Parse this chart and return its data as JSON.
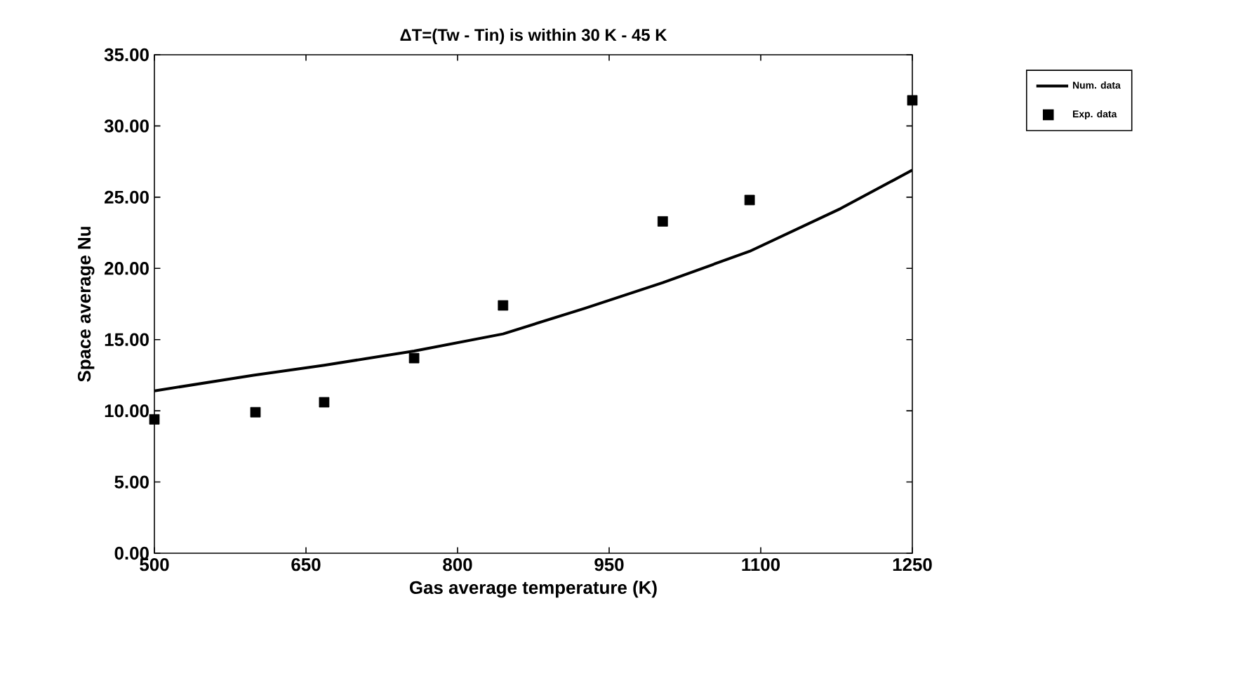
{
  "chart_data": {
    "type": "scatter",
    "title": "ΔT=(Tw - Tin) is within 30 K - 45 K",
    "xlabel": "Gas average temperature (K)",
    "ylabel": "Space average Nu",
    "xlim": [
      500,
      1250
    ],
    "xticks": [
      500,
      650,
      800,
      950,
      1100,
      1250
    ],
    "ylim": [
      0,
      35
    ],
    "yticks": [
      {
        "value": 0,
        "label": "0.00"
      },
      {
        "value": 5,
        "label": "5.00"
      },
      {
        "value": 10,
        "label": "10.00"
      },
      {
        "value": 15,
        "label": "15.00"
      },
      {
        "value": 20,
        "label": "20.00"
      },
      {
        "value": 25,
        "label": "25.00"
      },
      {
        "value": 30,
        "label": "30.00"
      },
      {
        "value": 35,
        "label": "35.00"
      }
    ],
    "legend": "right",
    "grid": false,
    "series": [
      {
        "name": "Num. data",
        "type": "line",
        "color": "#000000",
        "marker": "none",
        "line_style": "solid",
        "x": [
          500,
          598,
          668,
          757,
          845,
          926,
          1003,
          1089,
          1179,
          1250
        ],
        "values": [
          11.4,
          12.5,
          13.2,
          14.2,
          15.4,
          17.2,
          19.0,
          21.2,
          24.2,
          26.9
        ]
      },
      {
        "name": "Exp. data",
        "color": "#000000",
        "marker": "square",
        "x": [
          500,
          600,
          668,
          757,
          845,
          1003,
          1089,
          1250
        ],
        "values": [
          9.4,
          9.9,
          10.6,
          13.7,
          17.4,
          23.3,
          24.8,
          31.8
        ]
      }
    ]
  }
}
